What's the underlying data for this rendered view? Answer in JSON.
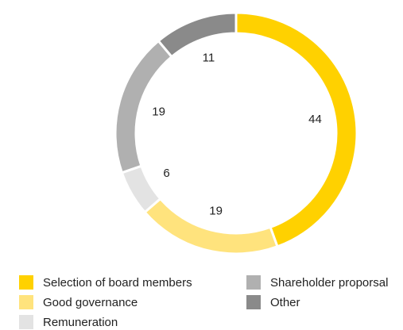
{
  "chart_data": {
    "type": "pie",
    "donut": true,
    "title": "",
    "categories": [
      "Selection of board members",
      "Good governance",
      "Remuneration",
      "Shareholder proporsal",
      "Other"
    ],
    "values": [
      44,
      19,
      6,
      19,
      11
    ],
    "value_labels": [
      "44",
      "19",
      "6",
      "19",
      "11"
    ],
    "colors": [
      "#FFD100",
      "#FFE37D",
      "#E3E3E3",
      "#B0B0B0",
      "#8A8A8A"
    ],
    "legend_position": "bottom",
    "start_angle": "12 o'clock",
    "direction": "clockwise"
  }
}
